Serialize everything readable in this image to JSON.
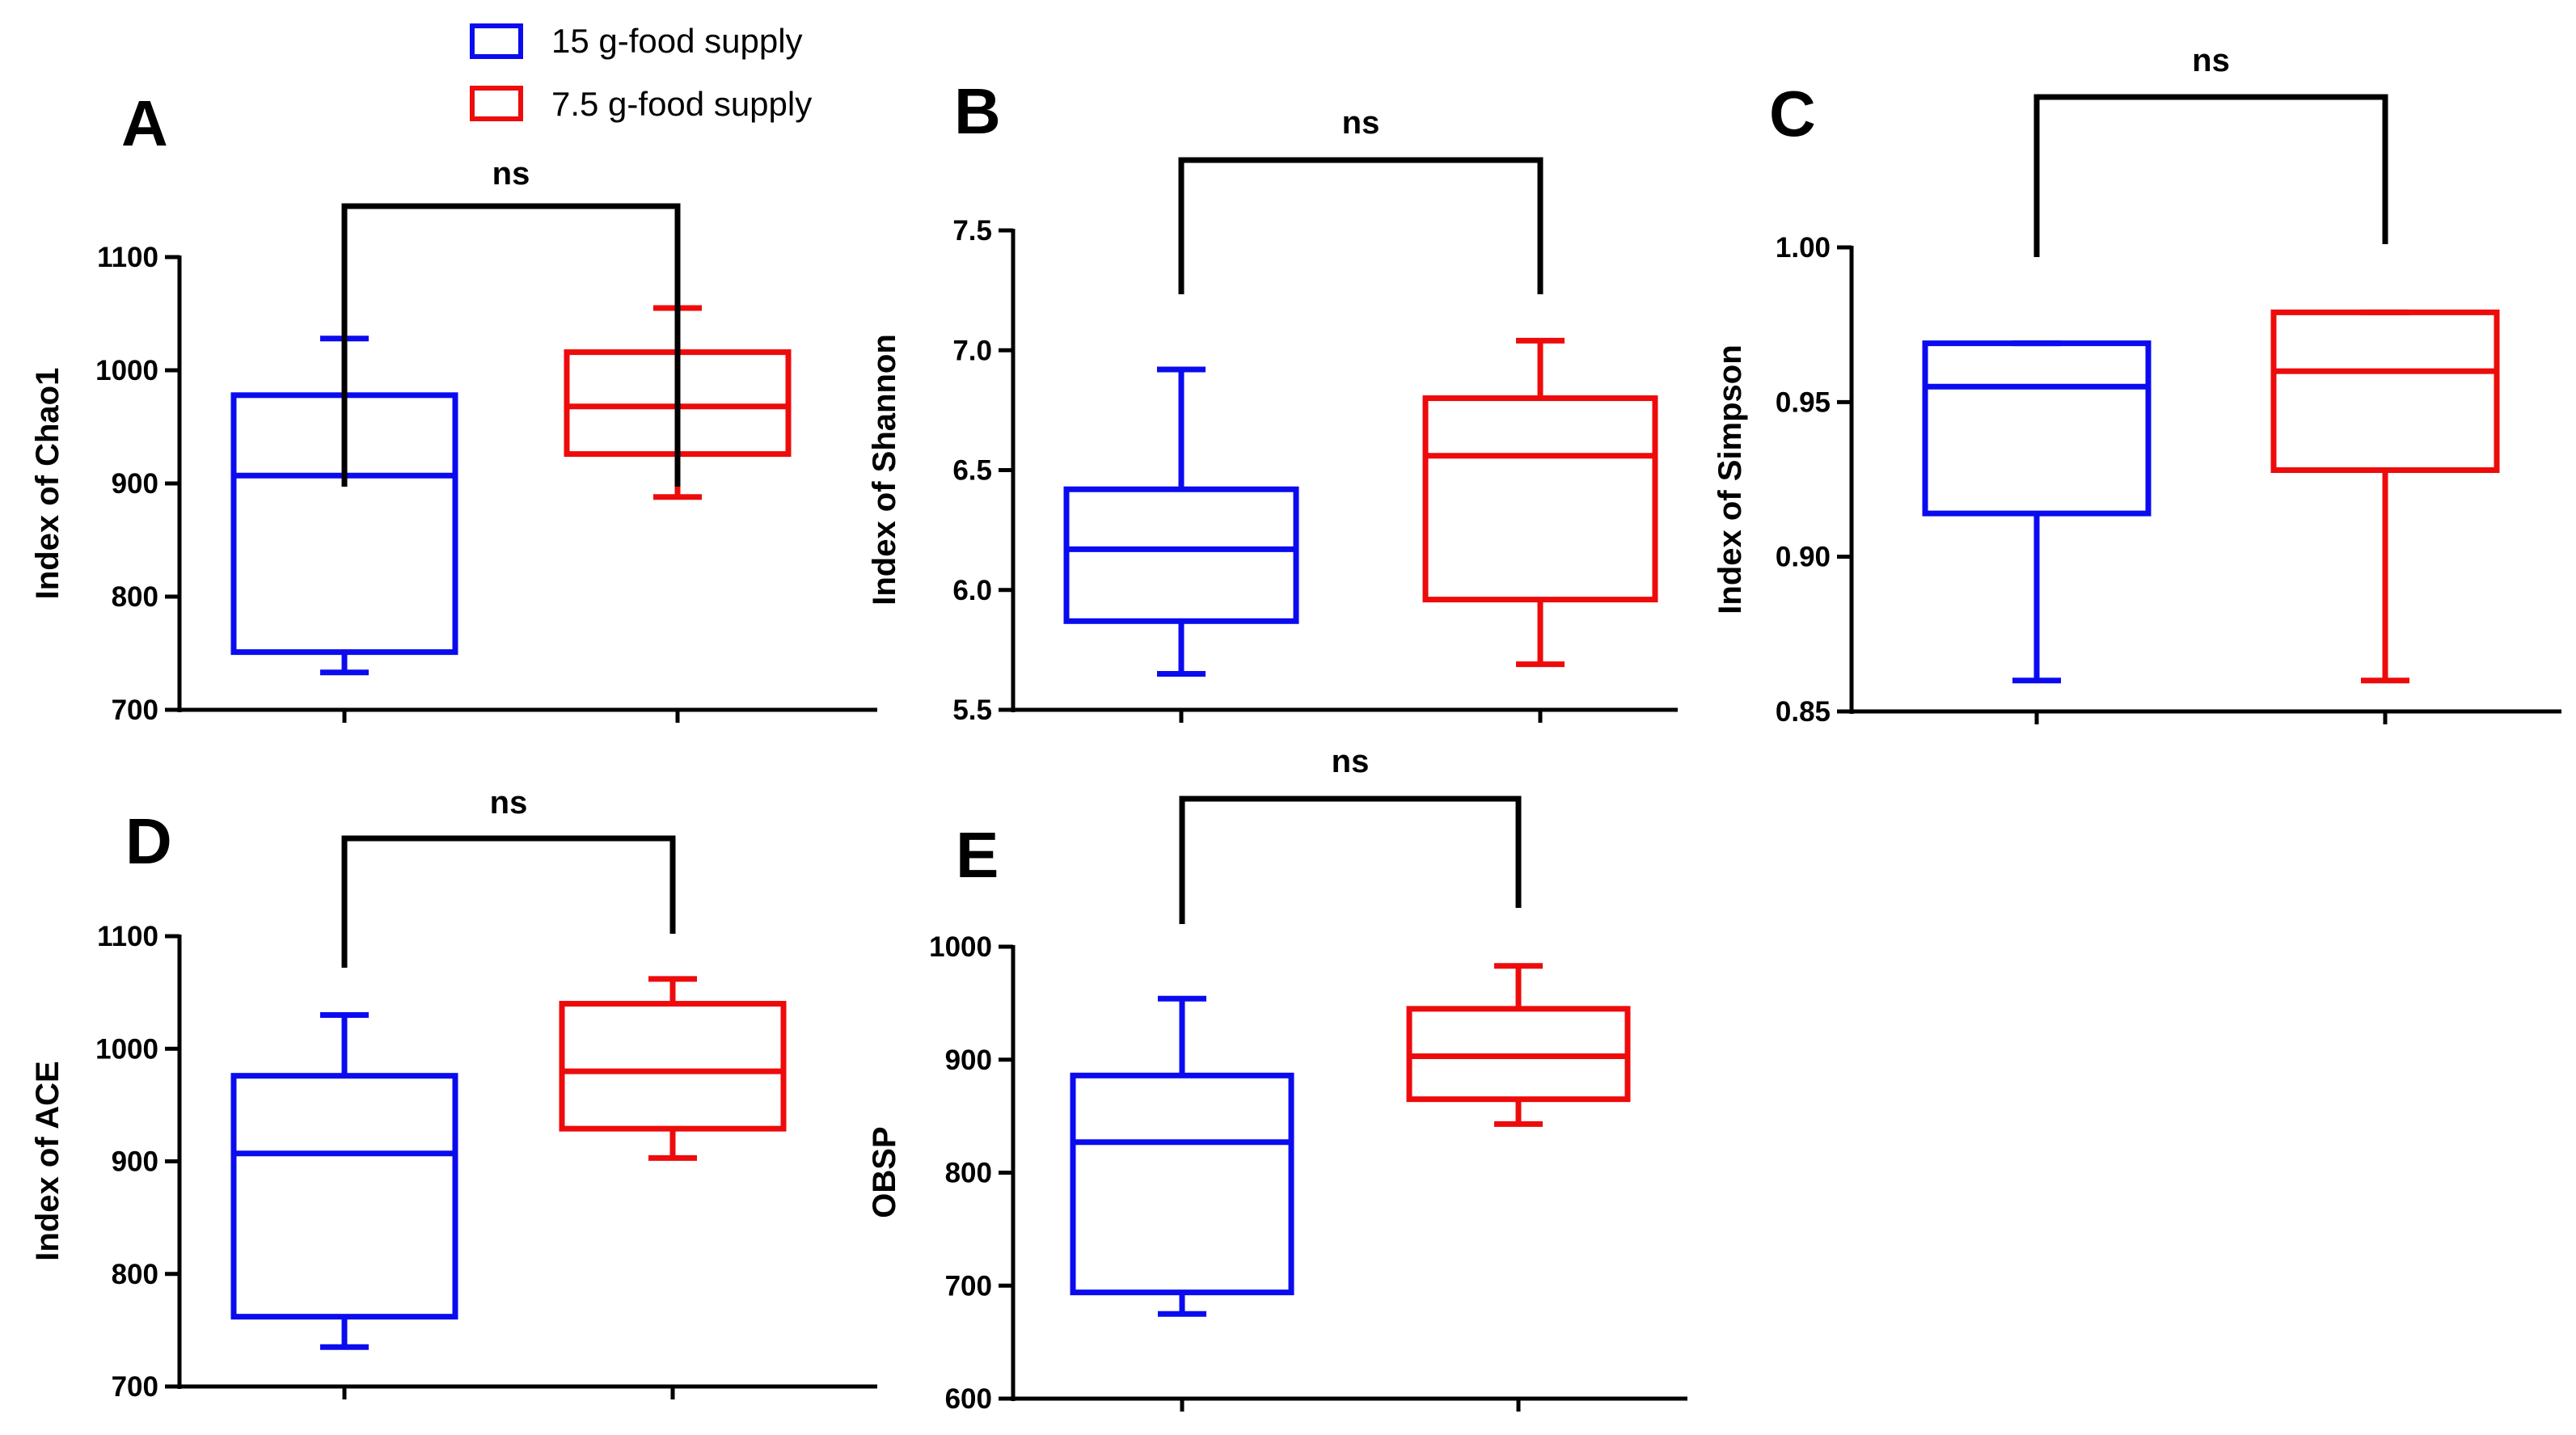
{
  "legend": [
    {
      "label": "15 g-food supply",
      "color": "#0b0bf0"
    },
    {
      "label": "7.5 g-food supply",
      "color": "#ee0b0b"
    }
  ],
  "chart_data": [
    {
      "panel": "A",
      "type": "box",
      "ylabel": "Index of Chao1",
      "ylim": [
        700,
        1100
      ],
      "yticks": [
        700,
        800,
        900,
        1000,
        1100
      ],
      "significance": "ns",
      "series": [
        {
          "name": "15 g-food supply",
          "min": 733,
          "q1": 751,
          "median": 907,
          "q3": 978,
          "max": 1028
        },
        {
          "name": "7.5 g-food supply",
          "min": 888,
          "q1": 926,
          "median": 968,
          "q3": 1016,
          "max": 1055
        }
      ]
    },
    {
      "panel": "B",
      "type": "box",
      "ylabel": "Index of Shannon",
      "ylim": [
        5.5,
        7.5
      ],
      "yticks": [
        "5.5",
        "6.0",
        "6.5",
        "7.0",
        "7.5"
      ],
      "significance": "ns",
      "series": [
        {
          "name": "15 g-food supply",
          "min": 5.65,
          "q1": 5.87,
          "median": 6.17,
          "q3": 6.42,
          "max": 6.92
        },
        {
          "name": "7.5 g-food supply",
          "min": 5.69,
          "q1": 5.96,
          "median": 6.56,
          "q3": 6.8,
          "max": 7.04
        }
      ]
    },
    {
      "panel": "C",
      "type": "box",
      "ylabel": "Index of Simpson",
      "ylim": [
        0.85,
        1.0
      ],
      "yticks": [
        "0.85",
        "0.90",
        "0.95",
        "1.00"
      ],
      "significance": "ns",
      "series": [
        {
          "name": "15 g-food supply",
          "min": 0.86,
          "q1": 0.914,
          "median": 0.955,
          "q3": 0.969,
          "max": 0.969
        },
        {
          "name": "7.5 g-food supply",
          "min": 0.86,
          "q1": 0.928,
          "median": 0.96,
          "q3": 0.979,
          "max": 0.979
        }
      ]
    },
    {
      "panel": "D",
      "type": "box",
      "ylabel": "Index of ACE",
      "ylim": [
        700,
        1100
      ],
      "yticks": [
        700,
        800,
        900,
        1000,
        1100
      ],
      "significance": "ns",
      "series": [
        {
          "name": "15 g-food supply",
          "min": 735,
          "q1": 762,
          "median": 907,
          "q3": 976,
          "max": 1030
        },
        {
          "name": "7.5 g-food supply",
          "min": 903,
          "q1": 929,
          "median": 980,
          "q3": 1040,
          "max": 1062
        }
      ]
    },
    {
      "panel": "E",
      "type": "box",
      "ylabel": "OBSP",
      "ylim": [
        600,
        1000
      ],
      "yticks": [
        600,
        700,
        800,
        900,
        1000
      ],
      "significance": "ns",
      "series": [
        {
          "name": "15 g-food supply",
          "min": 675,
          "q1": 694,
          "median": 827,
          "q3": 886,
          "max": 954
        },
        {
          "name": "7.5 g-food supply",
          "min": 843,
          "q1": 865,
          "median": 903,
          "q3": 945,
          "max": 983
        }
      ]
    }
  ]
}
